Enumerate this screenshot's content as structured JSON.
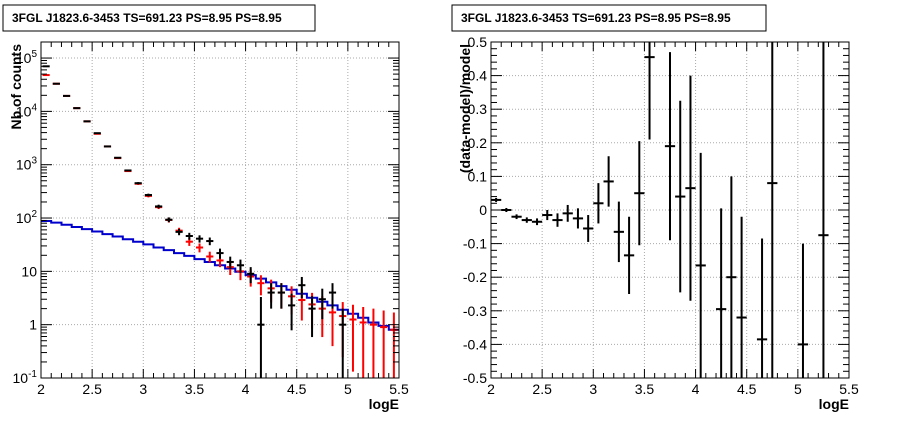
{
  "chart_data": [
    {
      "type": "line",
      "title": "3FGL J1823.6-3453 TS=691.23 PS=8.95 PS=8.95",
      "xlabel": "logE",
      "ylabel": "Nb of counts",
      "xlim": [
        2,
        5.5
      ],
      "ylim": [
        0.1,
        200000
      ],
      "yscale": "log",
      "grid": true,
      "x_ticks": [
        "2",
        "2.5",
        "3",
        "3.5",
        "4",
        "4.5",
        "5",
        "5.5"
      ],
      "y_ticks": [
        "10^-1",
        "1",
        "10",
        "10^2",
        "10^3",
        "10^4",
        "10^5"
      ],
      "series": [
        {
          "color": "#000000",
          "points": [
            {
              "x": 2.05,
              "y": 70000
            },
            {
              "x": 2.15,
              "y": 33000
            },
            {
              "x": 2.25,
              "y": 19500
            },
            {
              "x": 2.35,
              "y": 11500
            },
            {
              "x": 2.45,
              "y": 6500
            },
            {
              "x": 2.55,
              "y": 3900
            },
            {
              "x": 2.65,
              "y": 2200
            },
            {
              "x": 2.75,
              "y": 1350
            },
            {
              "x": 2.85,
              "y": 780
            },
            {
              "x": 2.95,
              "y": 450
            },
            {
              "x": 3.05,
              "y": 270
            },
            {
              "x": 3.15,
              "y": 165
            },
            {
              "x": 3.25,
              "y": 93
            },
            {
              "x": 3.35,
              "y": 55
            },
            {
              "x": 3.45,
              "y": 46
            },
            {
              "x": 3.55,
              "y": 41
            },
            {
              "x": 3.65,
              "y": 37
            },
            {
              "x": 3.75,
              "y": 22
            },
            {
              "x": 3.85,
              "y": 15
            },
            {
              "x": 3.95,
              "y": 13
            },
            {
              "x": 4.05,
              "y": 9
            },
            {
              "x": 4.15,
              "y": 1,
              "err_lo": 0.9,
              "err_hi": 2.3
            },
            {
              "x": 4.25,
              "y": 4
            },
            {
              "x": 4.35,
              "y": 4
            },
            {
              "x": 4.45,
              "y": 2.3
            },
            {
              "x": 4.55,
              "y": 5.5
            },
            {
              "x": 4.65,
              "y": 2
            },
            {
              "x": 4.75,
              "y": 3
            },
            {
              "x": 4.85,
              "y": 4
            },
            {
              "x": 4.95,
              "y": 1
            }
          ]
        },
        {
          "color": "#ff0000",
          "points": [
            {
              "x": 2.05,
              "y": 48000
            },
            {
              "x": 2.15,
              "y": 33000
            },
            {
              "x": 2.25,
              "y": 19500
            },
            {
              "x": 2.35,
              "y": 11500
            },
            {
              "x": 2.45,
              "y": 6500
            },
            {
              "x": 2.55,
              "y": 3800
            },
            {
              "x": 2.65,
              "y": 2200
            },
            {
              "x": 2.75,
              "y": 1330
            },
            {
              "x": 2.85,
              "y": 760
            },
            {
              "x": 2.95,
              "y": 440
            },
            {
              "x": 3.05,
              "y": 260
            },
            {
              "x": 3.15,
              "y": 160
            },
            {
              "x": 3.25,
              "y": 92
            },
            {
              "x": 3.35,
              "y": 58
            },
            {
              "x": 3.45,
              "y": 36
            },
            {
              "x": 3.55,
              "y": 28
            },
            {
              "x": 3.65,
              "y": 19
            },
            {
              "x": 3.75,
              "y": 16
            },
            {
              "x": 3.85,
              "y": 12
            },
            {
              "x": 3.95,
              "y": 10
            },
            {
              "x": 4.05,
              "y": 8
            },
            {
              "x": 4.15,
              "y": 6
            },
            {
              "x": 4.25,
              "y": 4.8
            },
            {
              "x": 4.35,
              "y": 4
            },
            {
              "x": 4.45,
              "y": 3.4
            },
            {
              "x": 4.55,
              "y": 2.9
            },
            {
              "x": 4.65,
              "y": 2.4
            },
            {
              "x": 4.75,
              "y": 2
            },
            {
              "x": 4.85,
              "y": 1.7
            },
            {
              "x": 4.95,
              "y": 1.45
            },
            {
              "x": 5.05,
              "y": 1.25
            },
            {
              "x": 5.15,
              "y": 1.1
            },
            {
              "x": 5.25,
              "y": 1
            },
            {
              "x": 5.35,
              "y": 0.9
            },
            {
              "x": 5.45,
              "y": 0.8
            }
          ]
        },
        {
          "color": "#0000cc",
          "step": true,
          "points": [
            {
              "x": 2.05,
              "y": 88
            },
            {
              "x": 2.15,
              "y": 82
            },
            {
              "x": 2.25,
              "y": 75
            },
            {
              "x": 2.35,
              "y": 68
            },
            {
              "x": 2.45,
              "y": 62
            },
            {
              "x": 2.55,
              "y": 56
            },
            {
              "x": 2.65,
              "y": 50
            },
            {
              "x": 2.75,
              "y": 45
            },
            {
              "x": 2.85,
              "y": 40
            },
            {
              "x": 2.95,
              "y": 36
            },
            {
              "x": 3.05,
              "y": 32
            },
            {
              "x": 3.15,
              "y": 28
            },
            {
              "x": 3.25,
              "y": 25
            },
            {
              "x": 3.35,
              "y": 22
            },
            {
              "x": 3.45,
              "y": 19.5
            },
            {
              "x": 3.55,
              "y": 17
            },
            {
              "x": 3.65,
              "y": 15
            },
            {
              "x": 3.75,
              "y": 13
            },
            {
              "x": 3.85,
              "y": 11.3
            },
            {
              "x": 3.95,
              "y": 9.8
            },
            {
              "x": 4.05,
              "y": 8.5
            },
            {
              "x": 4.15,
              "y": 7.3
            },
            {
              "x": 4.25,
              "y": 6.2
            },
            {
              "x": 4.35,
              "y": 5.3
            },
            {
              "x": 4.45,
              "y": 4.5
            },
            {
              "x": 4.55,
              "y": 3.8
            },
            {
              "x": 4.65,
              "y": 3.2
            },
            {
              "x": 4.75,
              "y": 2.7
            },
            {
              "x": 4.85,
              "y": 2.3
            },
            {
              "x": 4.95,
              "y": 1.9
            },
            {
              "x": 5.05,
              "y": 1.6
            },
            {
              "x": 5.15,
              "y": 1.35
            },
            {
              "x": 5.25,
              "y": 1.1
            },
            {
              "x": 5.35,
              "y": 0.95
            },
            {
              "x": 5.45,
              "y": 0.8
            }
          ]
        }
      ]
    },
    {
      "type": "scatter",
      "title": "3FGL J1823.6-3453 TS=691.23 PS=8.95 PS=8.95",
      "xlabel": "logE",
      "ylabel": "(data-model)/model",
      "xlim": [
        2,
        5.5
      ],
      "ylim": [
        -0.5,
        0.5
      ],
      "grid": true,
      "x_ticks": [
        "2",
        "2.5",
        "3",
        "3.5",
        "4",
        "4.5",
        "5",
        "5.5"
      ],
      "y_ticks": [
        "-0.5",
        "-0.4",
        "-0.3",
        "-0.2",
        "-0.1",
        "0",
        "0.1",
        "0.2",
        "0.3",
        "0.4",
        "0.5"
      ],
      "series": [
        {
          "color": "#000000",
          "points": [
            {
              "x": 2.05,
              "y": 0.03,
              "err": 0.006
            },
            {
              "x": 2.15,
              "y": 0.0,
              "err": 0.006
            },
            {
              "x": 2.25,
              "y": -0.02,
              "err": 0.007
            },
            {
              "x": 2.35,
              "y": -0.03,
              "err": 0.008
            },
            {
              "x": 2.45,
              "y": -0.035,
              "err": 0.01
            },
            {
              "x": 2.55,
              "y": -0.015,
              "err": 0.015
            },
            {
              "x": 2.65,
              "y": -0.03,
              "err": 0.02
            },
            {
              "x": 2.75,
              "y": -0.01,
              "err": 0.025
            },
            {
              "x": 2.85,
              "y": -0.025,
              "err": 0.03
            },
            {
              "x": 2.95,
              "y": -0.055,
              "err": 0.04
            },
            {
              "x": 3.05,
              "y": 0.02,
              "err": 0.06
            },
            {
              "x": 3.15,
              "y": 0.085,
              "err": 0.075
            },
            {
              "x": 3.25,
              "y": -0.065,
              "err": 0.09
            },
            {
              "x": 3.35,
              "y": -0.135,
              "err": 0.115
            },
            {
              "x": 3.45,
              "y": 0.05,
              "err": 0.155
            },
            {
              "x": 3.55,
              "y": 0.455,
              "err": 0.245
            },
            {
              "x": 3.75,
              "y": 0.19,
              "err": 0.28
            },
            {
              "x": 3.85,
              "y": 0.04,
              "err": 0.285
            },
            {
              "x": 3.95,
              "y": 0.065,
              "err": 0.335
            },
            {
              "x": 4.05,
              "y": -0.165,
              "err": 0.335
            },
            {
              "x": 4.25,
              "y": -0.295,
              "err": 0.3
            },
            {
              "x": 4.35,
              "y": -0.2,
              "err": 0.3
            },
            {
              "x": 4.45,
              "y": -0.32,
              "err": 0.3
            },
            {
              "x": 4.65,
              "y": -0.385,
              "err": 0.3
            },
            {
              "x": 4.75,
              "y": 0.08,
              "err": 0.7
            },
            {
              "x": 5.05,
              "y": -0.4,
              "err": 0.3
            },
            {
              "x": 5.25,
              "y": -0.075,
              "err": 0.7
            }
          ]
        }
      ]
    }
  ]
}
